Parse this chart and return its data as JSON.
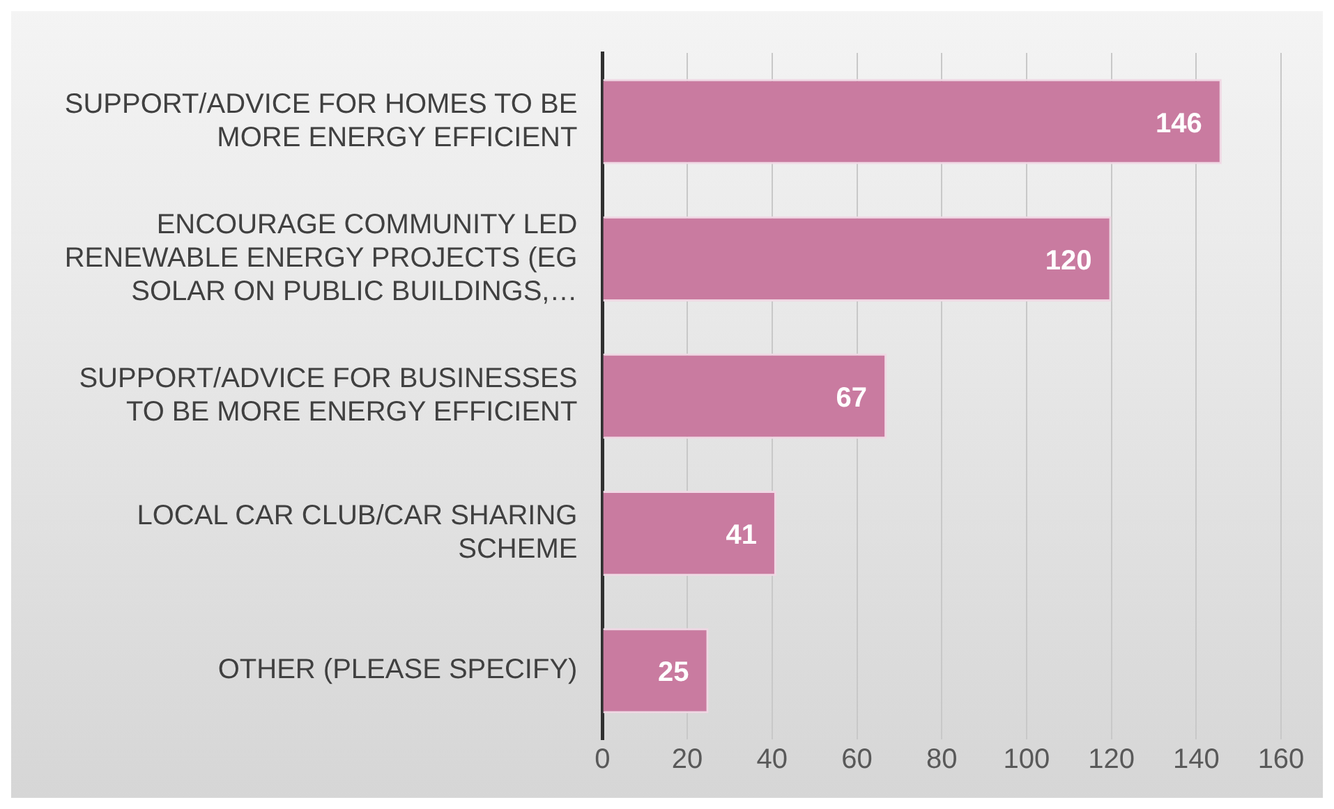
{
  "chart_data": {
    "type": "bar",
    "orientation": "horizontal",
    "categories": [
      "SUPPORT/ADVICE FOR HOMES TO BE MORE ENERGY EFFICIENT",
      "ENCOURAGE COMMUNITY LED RENEWABLE ENERGY PROJECTS (EG SOLAR ON PUBLIC BUILDINGS,…",
      "SUPPORT/ADVICE FOR BUSINESSES TO BE MORE ENERGY EFFICIENT",
      "LOCAL CAR CLUB/CAR SHARING SCHEME",
      "OTHER (PLEASE SPECIFY)"
    ],
    "values": [
      146,
      120,
      67,
      41,
      25
    ],
    "color": "#c97ba0",
    "xlim": [
      0,
      160
    ],
    "xticks": [
      0,
      20,
      40,
      60,
      80,
      100,
      120,
      140,
      160
    ],
    "grid": "x",
    "data_labels": true,
    "legend": false
  }
}
